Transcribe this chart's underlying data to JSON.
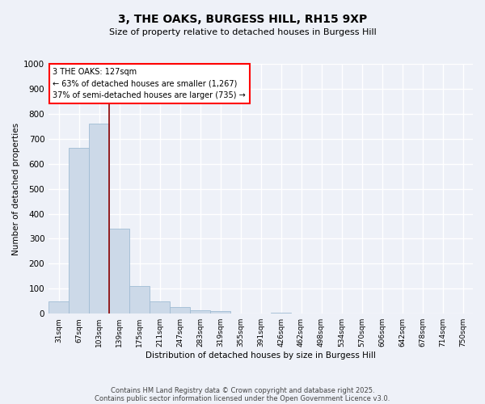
{
  "title1": "3, THE OAKS, BURGESS HILL, RH15 9XP",
  "title2": "Size of property relative to detached houses in Burgess Hill",
  "xlabel": "Distribution of detached houses by size in Burgess Hill",
  "ylabel": "Number of detached properties",
  "bins": [
    "31sqm",
    "67sqm",
    "103sqm",
    "139sqm",
    "175sqm",
    "211sqm",
    "247sqm",
    "283sqm",
    "319sqm",
    "355sqm",
    "391sqm",
    "426sqm",
    "462sqm",
    "498sqm",
    "534sqm",
    "570sqm",
    "606sqm",
    "642sqm",
    "678sqm",
    "714sqm",
    "750sqm"
  ],
  "values": [
    50,
    665,
    760,
    340,
    110,
    50,
    25,
    15,
    10,
    0,
    0,
    3,
    0,
    0,
    0,
    0,
    0,
    0,
    0,
    0,
    0
  ],
  "bar_color": "#ccd9e8",
  "bar_edge_color": "#a0bcd4",
  "vline_color": "#8b0000",
  "annotation_line1": "3 THE OAKS: 127sqm",
  "annotation_line2": "← 63% of detached houses are smaller (1,267)",
  "annotation_line3": "37% of semi-detached houses are larger (735) →",
  "annotation_box_color": "white",
  "annotation_box_edge_color": "red",
  "ylim": [
    0,
    1000
  ],
  "yticks": [
    0,
    100,
    200,
    300,
    400,
    500,
    600,
    700,
    800,
    900,
    1000
  ],
  "footer_line1": "Contains HM Land Registry data © Crown copyright and database right 2025.",
  "footer_line2": "Contains public sector information licensed under the Open Government Licence v3.0.",
  "bg_color": "#eef1f8",
  "grid_color": "white"
}
